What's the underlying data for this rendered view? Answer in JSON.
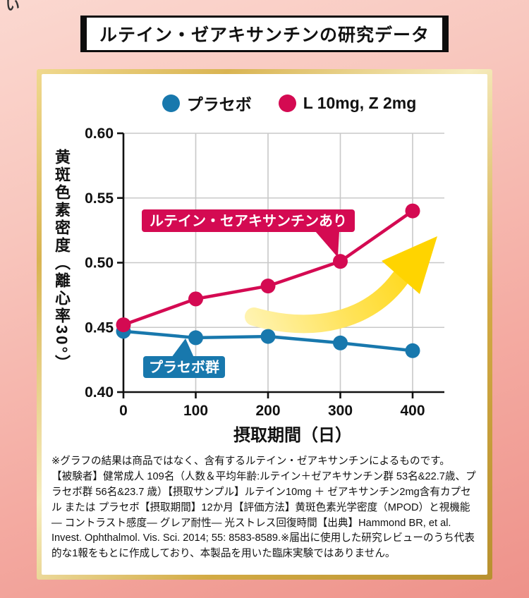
{
  "stray_text": "い",
  "title": "ルテイン・ゼアキサンチンの研究データ",
  "chart_data": {
    "type": "line",
    "title": "",
    "x": [
      0,
      100,
      200,
      300,
      400
    ],
    "series": [
      {
        "name": "プラセボ",
        "color": "#1878ad",
        "values": [
          0.447,
          0.442,
          0.443,
          0.438,
          0.432
        ]
      },
      {
        "name": "L 10mg, Z 2mg",
        "color": "#d40a52",
        "values": [
          0.452,
          0.472,
          0.482,
          0.501,
          0.54
        ]
      }
    ],
    "xlabel": "摂取期間（日）",
    "ylabel": "黄斑色素密度（離心率30°）",
    "xlim": [
      0,
      400
    ],
    "ylim": [
      0.4,
      0.6
    ],
    "xticks": [
      0,
      100,
      200,
      300,
      400
    ],
    "yticks": [
      0.4,
      0.45,
      0.5,
      0.55,
      0.6
    ],
    "grid": true,
    "legend_position": "top",
    "annotations": [
      {
        "text": "ルテイン・セアキサンチンあり",
        "color": "#d40a52"
      },
      {
        "text": "プラセボ群",
        "color": "#1878ad"
      }
    ],
    "arrow_color": "#ffd400"
  },
  "footnote": "※グラフの結果は商品ではなく、含有するルテイン・ゼアキサンチンによるものです。\n【被験者】健常成人 109名（人数＆平均年齢:ルテイン＋ゼアキサンチン群 53名&22.7歳、プラセボ群 56名&23.7 歳）【摂取サンプル】ルテイン10mg ＋ ゼアキサンチン2mg含有カプセル または プラセボ【摂取期間】12か月【評価方法】黄斑色素光学密度（MPOD）と視機能― コントラスト感度― グレア耐性― 光ストレス回復時間【出典】Hammond BR, et al. Invest. Ophthalmol. Vis. Sci. 2014; 55: 8583-8589.※届出に使用した研究レビューのうち代表的な1報をもとに作成しており、本製品を用いた臨床実験ではありません。"
}
